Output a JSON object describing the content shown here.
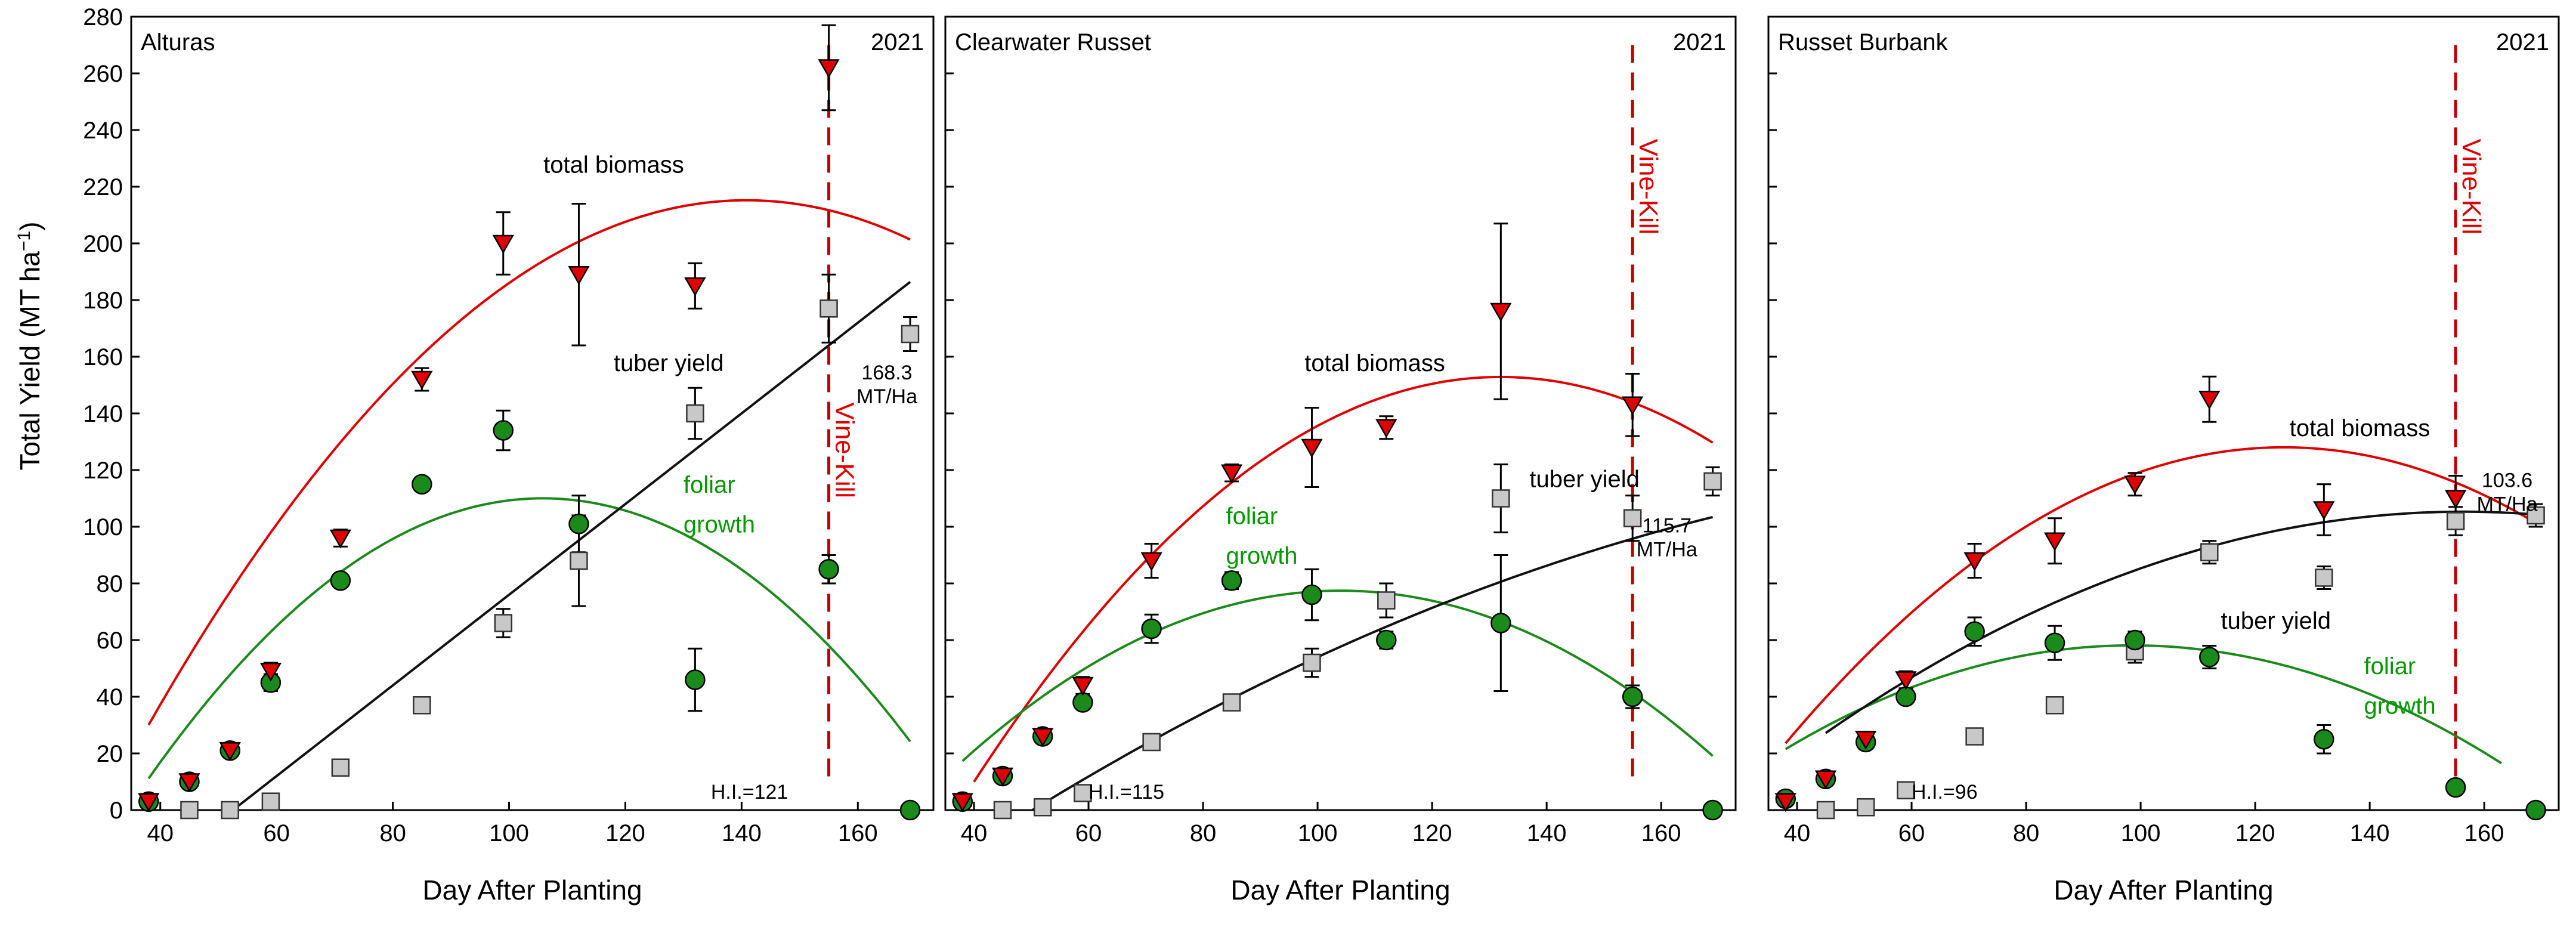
{
  "figure": {
    "y_axis_label": "Total Yield (MT ha",
    "y_axis_label_sup": "−1",
    "y_axis_label_close": ")"
  },
  "colors": {
    "biomass": "#e00000",
    "foliar": "#1a8a1a",
    "tuber": "#111111",
    "tuber_marker": "#c8c8c8",
    "vine_kill": "#c00000",
    "label_green": "#009900",
    "label_red": "#dd0000"
  },
  "icons": {
    "biomass": "down-triangle-marker",
    "foliar": "circle-marker",
    "tuber": "square-marker"
  },
  "chart_data": [
    {
      "type": "scatter",
      "title": "Alturas",
      "year": "2021",
      "xlabel": "Day After Planting",
      "ylabel": "Total Yield (MT ha−1)",
      "xlim": [
        35,
        173
      ],
      "ylim": [
        0,
        280
      ],
      "xticks": [
        40,
        60,
        80,
        100,
        120,
        140,
        160
      ],
      "yticks": [
        0,
        20,
        40,
        60,
        80,
        100,
        120,
        140,
        160,
        180,
        200,
        220,
        240,
        260,
        280
      ],
      "vine_kill": 155,
      "vine_kill_label": "Vine-Kill",
      "hi_label": "H.I.=121",
      "final_yield": "168.3",
      "final_yield_unit": "MT/Ha",
      "series": [
        {
          "name": "total biomass",
          "marker": "triangle",
          "x": [
            38,
            45,
            52,
            59,
            71,
            85,
            99,
            112,
            132,
            155
          ],
          "y": [
            3,
            10,
            21,
            49,
            96,
            152,
            200,
            189,
            185,
            262
          ],
          "err": [
            1,
            2,
            2,
            3,
            3,
            4,
            11,
            25,
            8,
            15
          ]
        },
        {
          "name": "foliar growth",
          "marker": "circle",
          "x": [
            38,
            45,
            52,
            59,
            71,
            85,
            99,
            112,
            132,
            155,
            169
          ],
          "y": [
            3,
            10,
            21,
            45,
            81,
            115,
            134,
            101,
            46,
            85,
            0
          ],
          "err": [
            1,
            2,
            2,
            3,
            2,
            2,
            7,
            10,
            11,
            5,
            0
          ]
        },
        {
          "name": "tuber yield",
          "marker": "square",
          "x": [
            45,
            52,
            59,
            71,
            85,
            99,
            112,
            132,
            155,
            169
          ],
          "y": [
            0,
            0,
            3,
            15,
            37,
            66,
            88,
            140,
            177,
            168
          ],
          "err": [
            0,
            0,
            1,
            1,
            1,
            5,
            16,
            9,
            12,
            6
          ]
        }
      ],
      "curves": [
        {
          "name": "total biomass",
          "a": -0.0175,
          "b": 4.93,
          "c": -132,
          "from": 38,
          "to": 169
        },
        {
          "name": "foliar growth",
          "a": -0.0215,
          "b": 4.55,
          "c": -130.7,
          "from": 38,
          "to": 169
        },
        {
          "name": "tuber yield",
          "a": 0,
          "b": 1.6,
          "c": -84,
          "from": 53,
          "to": 169
        }
      ],
      "annotations": [
        {
          "text": "total biomass",
          "x": 118,
          "y": 225,
          "color": "black",
          "anchor": "middle"
        },
        {
          "text": "tuber yield",
          "x": 118,
          "y": 155,
          "color": "black",
          "anchor": "start"
        },
        {
          "text": "foliar",
          "x": 130,
          "y": 112,
          "color": "green",
          "anchor": "start"
        },
        {
          "text": "growth",
          "x": 130,
          "y": 98,
          "color": "green",
          "anchor": "start"
        }
      ]
    },
    {
      "type": "scatter",
      "title": "Clearwater Russet",
      "year": "2021",
      "xlabel": "Day After Planting",
      "ylabel": "Total Yield (MT ha−1)",
      "xlim": [
        35,
        173
      ],
      "ylim": [
        0,
        280
      ],
      "xticks": [
        40,
        60,
        80,
        100,
        120,
        140,
        160
      ],
      "yticks": [
        0,
        20,
        40,
        60,
        80,
        100,
        120,
        140,
        160,
        180,
        200,
        220,
        240,
        260,
        280
      ],
      "vine_kill": 155,
      "vine_kill_label": "Vine-Kill",
      "hi_label": "H.I.=115",
      "final_yield": "115.7",
      "final_yield_unit": "MT/Ha",
      "series": [
        {
          "name": "total biomass",
          "marker": "triangle",
          "x": [
            38,
            45,
            52,
            59,
            71,
            85,
            99,
            112,
            132,
            155
          ],
          "y": [
            3,
            12,
            26,
            44,
            88,
            119,
            128,
            135,
            176,
            143
          ],
          "err": [
            1,
            2,
            2,
            3,
            6,
            3,
            14,
            4,
            31,
            11
          ]
        },
        {
          "name": "foliar growth",
          "marker": "circle",
          "x": [
            38,
            45,
            52,
            59,
            71,
            85,
            99,
            112,
            132,
            155,
            169
          ],
          "y": [
            3,
            12,
            26,
            38,
            64,
            81,
            76,
            60,
            66,
            40,
            0
          ],
          "err": [
            1,
            2,
            2,
            2,
            5,
            3,
            9,
            3,
            24,
            4,
            0
          ]
        },
        {
          "name": "tuber yield",
          "marker": "square",
          "x": [
            45,
            52,
            59,
            71,
            85,
            99,
            112,
            132,
            155,
            169
          ],
          "y": [
            0,
            1,
            6,
            24,
            38,
            52,
            74,
            110,
            103,
            116
          ],
          "err": [
            0,
            0,
            1,
            1,
            2,
            5,
            6,
            12,
            8,
            5
          ]
        }
      ],
      "curves": [
        {
          "name": "total biomass",
          "a": -0.0169,
          "b": 4.46,
          "c": -141.4,
          "from": 40,
          "to": 169
        },
        {
          "name": "foliar growth",
          "a": -0.0138,
          "b": 2.87,
          "c": -71.8,
          "from": 38,
          "to": 169
        },
        {
          "name": "tuber yield",
          "a": -0.0031,
          "b": 1.55,
          "c": -70,
          "from": 50,
          "to": 169
        }
      ],
      "annotations": [
        {
          "text": "total biomass",
          "x": 110,
          "y": 155,
          "color": "black",
          "anchor": "middle"
        },
        {
          "text": "tuber yield",
          "x": 137,
          "y": 114,
          "color": "black",
          "anchor": "start"
        },
        {
          "text": "foliar",
          "x": 84,
          "y": 101,
          "color": "green",
          "anchor": "start"
        },
        {
          "text": "growth",
          "x": 84,
          "y": 87,
          "color": "green",
          "anchor": "start"
        }
      ]
    },
    {
      "type": "scatter",
      "title": "Russet Burbank",
      "year": "2021",
      "xlabel": "Day After Planting",
      "ylabel": "Total Yield (MT ha−1)",
      "xlim": [
        35,
        173
      ],
      "ylim": [
        0,
        280
      ],
      "xticks": [
        40,
        60,
        80,
        100,
        120,
        140,
        160
      ],
      "yticks": [
        0,
        20,
        40,
        60,
        80,
        100,
        120,
        140,
        160,
        180,
        200,
        220,
        240,
        260,
        280
      ],
      "vine_kill": 155,
      "vine_kill_label": "Vine-Kill",
      "hi_label": "H.I.=96",
      "final_yield": "103.6",
      "final_yield_unit": "MT/Ha",
      "series": [
        {
          "name": "total biomass",
          "marker": "triangle",
          "x": [
            38,
            45,
            52,
            59,
            71,
            85,
            99,
            112,
            132,
            155
          ],
          "y": [
            3,
            11,
            25,
            46,
            88,
            95,
            115,
            145,
            106,
            110
          ],
          "err": [
            1,
            2,
            2,
            3,
            6,
            8,
            4,
            8,
            9,
            8
          ]
        },
        {
          "name": "foliar growth",
          "marker": "circle",
          "x": [
            38,
            45,
            52,
            59,
            71,
            85,
            99,
            112,
            132,
            155,
            169
          ],
          "y": [
            4,
            11,
            24,
            40,
            63,
            59,
            60,
            54,
            25,
            8,
            0
          ],
          "err": [
            1,
            2,
            2,
            2,
            5,
            6,
            3,
            4,
            5,
            2,
            0
          ]
        },
        {
          "name": "tuber yield",
          "marker": "square",
          "x": [
            45,
            52,
            59,
            71,
            85,
            99,
            112,
            132,
            155,
            169
          ],
          "y": [
            0,
            1,
            7,
            26,
            37,
            56,
            91,
            82,
            102,
            104
          ],
          "err": [
            0,
            0,
            1,
            1,
            2,
            4,
            4,
            4,
            5,
            4
          ]
        }
      ],
      "curves": [
        {
          "name": "total biomass",
          "a": -0.0138,
          "b": 3.45,
          "c": -87.6,
          "from": 38,
          "to": 169
        },
        {
          "name": "foliar growth",
          "a": -0.01,
          "b": 1.97,
          "c": -38.9,
          "from": 38,
          "to": 163
        },
        {
          "name": "tuber yield",
          "a": -0.0063,
          "b": 1.97,
          "c": -48.7,
          "from": 45,
          "to": 169
        }
      ],
      "annotations": [
        {
          "text": "total biomass",
          "x": 126,
          "y": 132,
          "color": "black",
          "anchor": "start"
        },
        {
          "text": "tuber yield",
          "x": 114,
          "y": 64,
          "color": "black",
          "anchor": "start"
        },
        {
          "text": "foliar",
          "x": 139,
          "y": 48,
          "color": "green",
          "anchor": "start"
        },
        {
          "text": "growth",
          "x": 139,
          "y": 34,
          "color": "green",
          "anchor": "start"
        }
      ]
    }
  ]
}
